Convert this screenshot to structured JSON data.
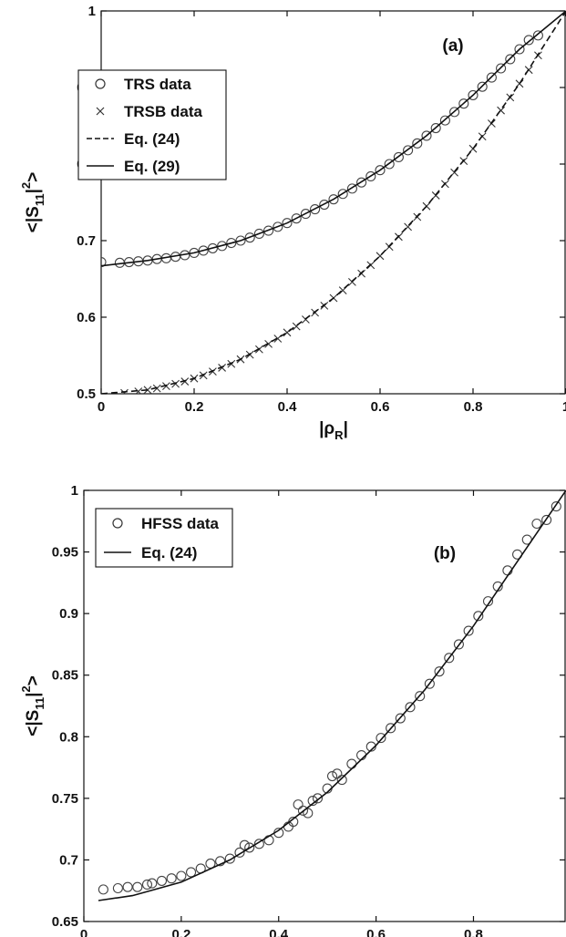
{
  "chart_data": [
    {
      "panel": "(a)",
      "type": "scatter",
      "xlabel": "|ρ",
      "xlabel_sub": "R",
      "xlabel_tail": "|",
      "ylabel": "<|S",
      "ylabel_sub": "11",
      "ylabel_tail": "|",
      "ylabel_sup": "2",
      "ylabel_end": ">",
      "xlim": [
        0,
        1
      ],
      "ylim": [
        0.5,
        1
      ],
      "xticks": [
        "0",
        "0.2",
        "0.4",
        "0.6",
        "0.8",
        "1"
      ],
      "yticks": [
        "0.5",
        "0.6",
        "0.7",
        "0.8",
        "0.9",
        "1"
      ],
      "ytick_values": [
        0.5,
        0.6,
        0.7,
        0.8,
        0.9,
        1.0
      ],
      "xtick_values": [
        0,
        0.2,
        0.4,
        0.6,
        0.8,
        1.0
      ],
      "grid": false,
      "legend_position": "upper-left",
      "legend": [
        "TRS data",
        "TRSB data",
        "Eq. (24)",
        "Eq. (29)"
      ],
      "series": [
        {
          "name": "TRS data",
          "marker": "circle",
          "x": [
            0.0,
            0.04,
            0.06,
            0.08,
            0.1,
            0.12,
            0.14,
            0.16,
            0.18,
            0.2,
            0.22,
            0.24,
            0.26,
            0.28,
            0.3,
            0.32,
            0.34,
            0.36,
            0.38,
            0.4,
            0.42,
            0.44,
            0.46,
            0.48,
            0.5,
            0.52,
            0.54,
            0.56,
            0.58,
            0.6,
            0.62,
            0.64,
            0.66,
            0.68,
            0.7,
            0.72,
            0.74,
            0.76,
            0.78,
            0.8,
            0.82,
            0.84,
            0.86,
            0.88,
            0.9,
            0.92,
            0.94
          ],
          "y": [
            0.672,
            0.671,
            0.672,
            0.673,
            0.674,
            0.676,
            0.677,
            0.679,
            0.681,
            0.684,
            0.687,
            0.69,
            0.693,
            0.697,
            0.7,
            0.704,
            0.709,
            0.713,
            0.718,
            0.723,
            0.729,
            0.735,
            0.741,
            0.747,
            0.754,
            0.761,
            0.768,
            0.776,
            0.784,
            0.792,
            0.8,
            0.809,
            0.818,
            0.827,
            0.837,
            0.847,
            0.857,
            0.868,
            0.879,
            0.89,
            0.901,
            0.913,
            0.925,
            0.937,
            0.95,
            0.962,
            0.968
          ]
        },
        {
          "name": "TRSB data",
          "marker": "x",
          "x": [
            0.05,
            0.08,
            0.1,
            0.12,
            0.14,
            0.16,
            0.18,
            0.2,
            0.22,
            0.24,
            0.26,
            0.28,
            0.3,
            0.32,
            0.34,
            0.36,
            0.38,
            0.4,
            0.42,
            0.44,
            0.46,
            0.48,
            0.5,
            0.52,
            0.54,
            0.56,
            0.58,
            0.6,
            0.62,
            0.64,
            0.66,
            0.68,
            0.7,
            0.72,
            0.74,
            0.76,
            0.78,
            0.8,
            0.82,
            0.84,
            0.86,
            0.88,
            0.9,
            0.92,
            0.94
          ],
          "y": [
            0.501,
            0.503,
            0.505,
            0.507,
            0.51,
            0.513,
            0.516,
            0.52,
            0.524,
            0.529,
            0.534,
            0.539,
            0.545,
            0.551,
            0.558,
            0.565,
            0.572,
            0.58,
            0.588,
            0.597,
            0.606,
            0.615,
            0.625,
            0.635,
            0.646,
            0.657,
            0.668,
            0.68,
            0.692,
            0.705,
            0.718,
            0.731,
            0.745,
            0.759,
            0.774,
            0.789,
            0.804,
            0.82,
            0.836,
            0.853,
            0.87,
            0.887,
            0.905,
            0.923,
            0.942
          ]
        },
        {
          "name": "Eq. (24)",
          "line": "dashed",
          "x": [
            0,
            0.1,
            0.2,
            0.3,
            0.4,
            0.5,
            0.6,
            0.7,
            0.8,
            0.9,
            1.0
          ],
          "y": [
            0.5,
            0.505,
            0.52,
            0.545,
            0.58,
            0.625,
            0.68,
            0.745,
            0.82,
            0.905,
            1.0
          ]
        },
        {
          "name": "Eq. (29)",
          "line": "solid",
          "x": [
            0,
            0.1,
            0.2,
            0.3,
            0.4,
            0.5,
            0.6,
            0.7,
            0.8,
            0.9,
            1.0
          ],
          "y": [
            0.667,
            0.674,
            0.684,
            0.7,
            0.723,
            0.754,
            0.792,
            0.837,
            0.89,
            0.95,
            1.0
          ]
        }
      ]
    },
    {
      "panel": "(b)",
      "type": "scatter",
      "xlabel": "|ρ",
      "xlabel_sub": "R",
      "xlabel_tail": "|",
      "ylabel": "<|S",
      "ylabel_sub": "11",
      "ylabel_tail": "|",
      "ylabel_sup": "2",
      "ylabel_end": ">",
      "xlim": [
        0,
        0.99
      ],
      "ylim": [
        0.65,
        1
      ],
      "xticks": [
        "0",
        "0.2",
        "0.4",
        "0.6",
        "0.8"
      ],
      "yticks": [
        "0.65",
        "0.7",
        "0.75",
        "0.8",
        "0.85",
        "0.9",
        "0.95",
        "1"
      ],
      "ytick_values": [
        0.65,
        0.7,
        0.75,
        0.8,
        0.85,
        0.9,
        0.95,
        1.0
      ],
      "xtick_values": [
        0,
        0.2,
        0.4,
        0.6,
        0.8
      ],
      "grid": false,
      "legend_position": "upper-left",
      "legend": [
        "HFSS data",
        "Eq. (24)"
      ],
      "series": [
        {
          "name": "HFSS data",
          "marker": "circle",
          "x": [
            0.04,
            0.07,
            0.09,
            0.11,
            0.13,
            0.14,
            0.16,
            0.18,
            0.2,
            0.22,
            0.24,
            0.26,
            0.28,
            0.3,
            0.32,
            0.33,
            0.34,
            0.36,
            0.38,
            0.4,
            0.42,
            0.43,
            0.44,
            0.45,
            0.46,
            0.47,
            0.48,
            0.5,
            0.51,
            0.52,
            0.53,
            0.55,
            0.57,
            0.59,
            0.61,
            0.63,
            0.65,
            0.67,
            0.69,
            0.71,
            0.73,
            0.75,
            0.77,
            0.79,
            0.81,
            0.83,
            0.85,
            0.87,
            0.89,
            0.91,
            0.93,
            0.95,
            0.97
          ],
          "y": [
            0.676,
            0.677,
            0.678,
            0.678,
            0.68,
            0.681,
            0.683,
            0.685,
            0.687,
            0.69,
            0.693,
            0.697,
            0.699,
            0.701,
            0.706,
            0.712,
            0.71,
            0.713,
            0.716,
            0.722,
            0.727,
            0.731,
            0.745,
            0.74,
            0.738,
            0.748,
            0.75,
            0.758,
            0.768,
            0.77,
            0.765,
            0.778,
            0.785,
            0.792,
            0.799,
            0.807,
            0.815,
            0.824,
            0.833,
            0.843,
            0.853,
            0.864,
            0.875,
            0.886,
            0.898,
            0.91,
            0.922,
            0.935,
            0.948,
            0.96,
            0.973,
            0.976,
            0.987
          ]
        },
        {
          "name": "Eq. (24)",
          "line": "solid",
          "x": [
            0.03,
            0.1,
            0.2,
            0.3,
            0.4,
            0.5,
            0.6,
            0.7,
            0.8,
            0.9,
            0.99
          ],
          "y": [
            0.667,
            0.671,
            0.682,
            0.7,
            0.724,
            0.755,
            0.793,
            0.838,
            0.89,
            0.948,
            1.0
          ]
        }
      ]
    }
  ]
}
